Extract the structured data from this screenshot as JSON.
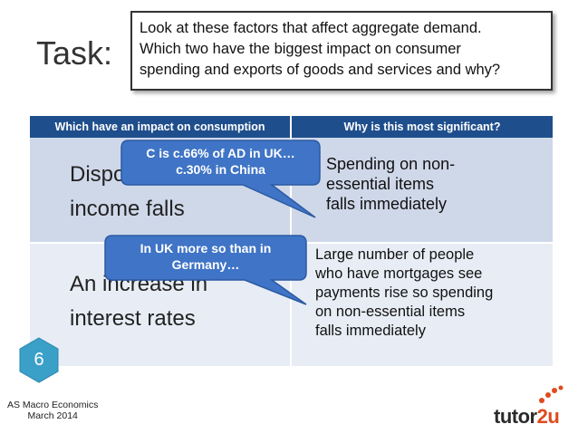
{
  "task": {
    "title": "Task:",
    "prompt_line1": "Look at these factors that affect aggregate demand.",
    "prompt_line2": "Which two have the biggest impact on consumer",
    "prompt_line3": "spending and exports of goods and services and why?"
  },
  "table": {
    "header_left": "Which have an impact on consumption",
    "header_right": "Why is this most significant?",
    "rows": [
      {
        "factor_line1": "Disposable",
        "factor_line2": "income falls",
        "reason_lines": [
          "Spending on non-",
          "essential items",
          "falls immediately"
        ]
      },
      {
        "factor_line1": "An increase in",
        "factor_line2": "interest rates",
        "reason_lines": [
          "Large number of people",
          "who have mortgages see",
          "payments rise so spending",
          "on non-essential items",
          "falls immediately"
        ]
      }
    ]
  },
  "callouts": {
    "first_line1": "C is c.66% of AD in UK…",
    "first_line2": "c.30% in China",
    "second_line1": "In UK more so than in",
    "second_line2": "Germany…"
  },
  "badge": {
    "number": "6"
  },
  "footer": {
    "line1": "AS Macro Economics",
    "line2": "March 2014"
  },
  "logo": {
    "part1": "tutor",
    "part2": "2u"
  },
  "colors": {
    "header": "#1f4e8c",
    "row1": "#cfd8e9",
    "row2": "#e8edf5",
    "bubble": "#3f74c6",
    "badge": "#3aa0c8",
    "logo_accent": "#e04a1f"
  }
}
